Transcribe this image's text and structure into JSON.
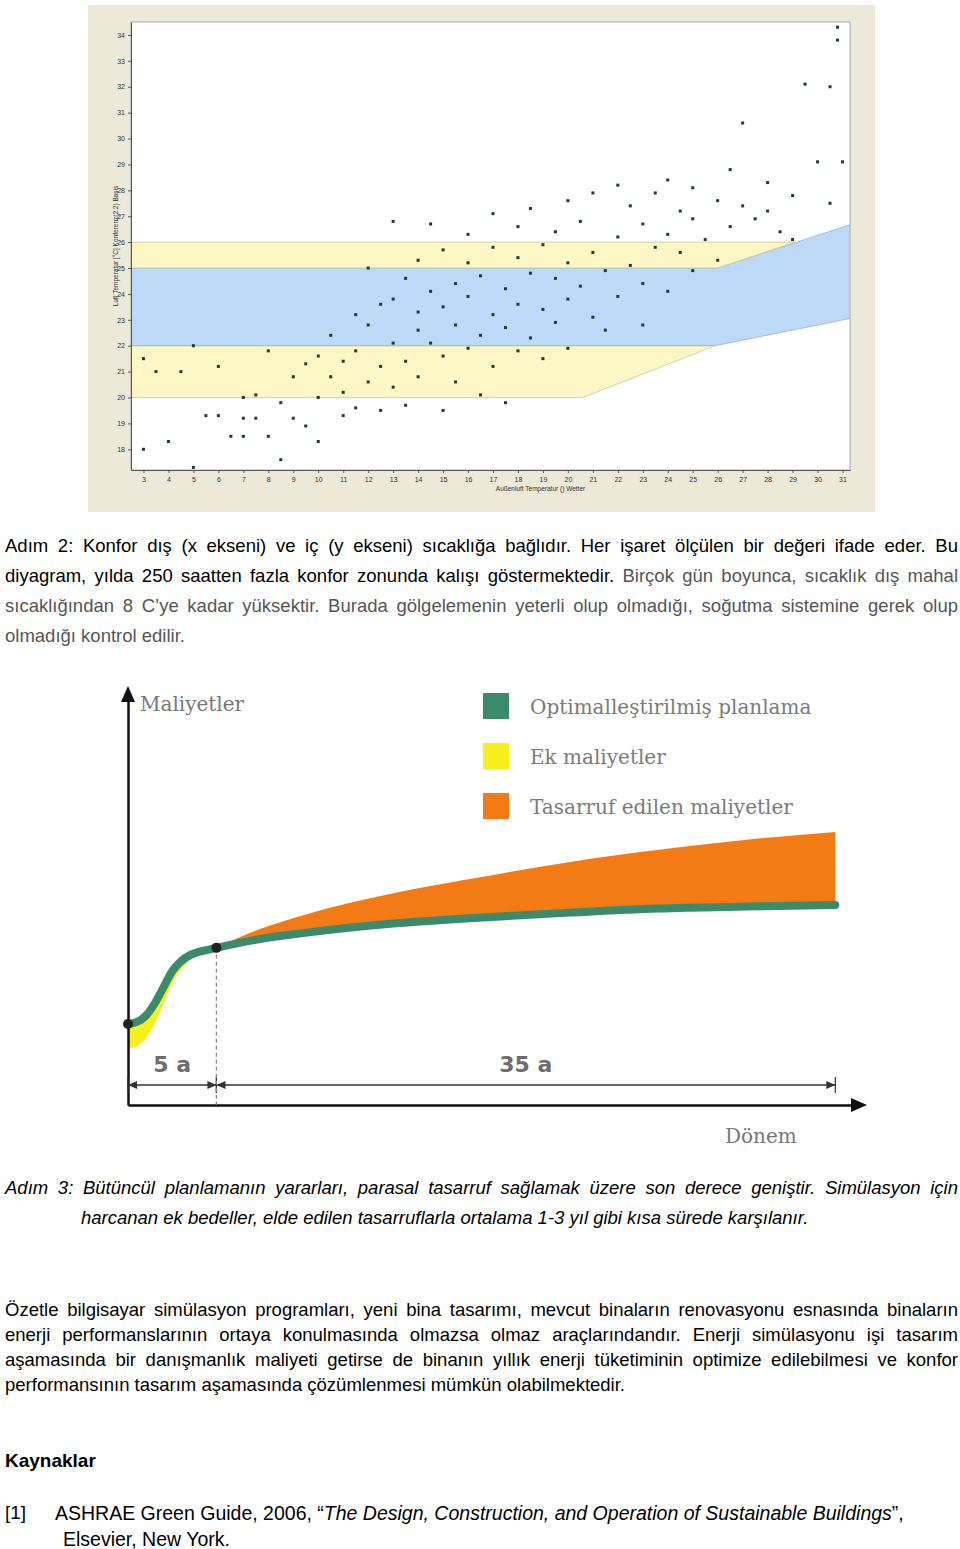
{
  "chart_data": [
    {
      "type": "scatter",
      "x_label": "Außenluft Temperatur () Wetter",
      "y_label": "Luft Temperatur [°C] Konferenz(2.2) Basis",
      "xlim": [
        2.5,
        31.3
      ],
      "ylim": [
        17.2,
        34.5
      ],
      "xticks": [
        3,
        4,
        5,
        6,
        7,
        8,
        9,
        10,
        11,
        12,
        13,
        14,
        15,
        16,
        17,
        18,
        19,
        20,
        21,
        22,
        23,
        24,
        25,
        26,
        27,
        28,
        29,
        30,
        31
      ],
      "yticks": [
        18,
        19,
        20,
        21,
        22,
        23,
        24,
        25,
        26,
        27,
        28,
        29,
        30,
        31,
        32,
        33,
        34
      ],
      "grid": false,
      "series": [
        {
          "type": "area",
          "color": "#fcf7c5",
          "x": [
            2.5,
            20.6,
            25.9
          ],
          "lower": [
            20,
            20,
            22
          ],
          "values": [
            22,
            22,
            22
          ]
        },
        {
          "type": "area",
          "color": "#bcdaf7",
          "x": [
            2.5,
            25.9,
            26,
            31.3
          ],
          "lower": [
            22,
            22,
            22.02,
            23.05
          ],
          "values": [
            25,
            25,
            25,
            26.67
          ]
        },
        {
          "type": "area",
          "color": "#fcf7c5",
          "x": [
            2.5,
            26,
            29.1
          ],
          "lower": [
            25,
            25,
            26
          ],
          "values": [
            26,
            26,
            26
          ]
        },
        {
          "type": "scatter",
          "marker": "square",
          "color": "#1f3d2d",
          "x": [
            3,
            3,
            3.5,
            4,
            4.5,
            5,
            5,
            5.5,
            6,
            6,
            6.5,
            7,
            7,
            7,
            7.5,
            7.5,
            8,
            8,
            8.5,
            8.5,
            9,
            9,
            9.5,
            9.5,
            10,
            10,
            10,
            10.5,
            10.5,
            11,
            11,
            11,
            11.5,
            11.5,
            11.5,
            12,
            12,
            12,
            12.5,
            12.5,
            12.5,
            13,
            13,
            13,
            13,
            13.5,
            13.5,
            13.5,
            14,
            14,
            14,
            14,
            14.5,
            14.5,
            14.5,
            15,
            15,
            15,
            15,
            15.5,
            15.5,
            15.5,
            16,
            16,
            16,
            16,
            16.5,
            16.5,
            16.5,
            17,
            17,
            17,
            17,
            17.5,
            17.5,
            17.5,
            18,
            18,
            18,
            18,
            18.5,
            18.5,
            18.5,
            19,
            19,
            19,
            19.5,
            19.5,
            19.5,
            20,
            20,
            20,
            20,
            20.5,
            20.5,
            21,
            21,
            21,
            21.5,
            21.5,
            22,
            22,
            22,
            22.5,
            22.5,
            23,
            23,
            23,
            23.5,
            23.5,
            24,
            24,
            24,
            24.5,
            24.5,
            25,
            25,
            25,
            25.5,
            26,
            26,
            26.5,
            26.5,
            27,
            27,
            27.5,
            28,
            28,
            28.5,
            29,
            29,
            29.5,
            30,
            30.5,
            30.5,
            30.8,
            30.8,
            31
          ],
          "values": [
            18,
            21.5,
            21,
            18.3,
            21,
            17.3,
            22,
            19.3,
            19.3,
            21.2,
            18.5,
            19.2,
            20,
            18.5,
            19.2,
            20.1,
            18.5,
            21.8,
            19.8,
            17.6,
            19.2,
            20.8,
            21.3,
            18.9,
            20,
            21.6,
            18.3,
            20.8,
            22.4,
            20.2,
            19.3,
            21.4,
            23.2,
            21.8,
            19.6,
            22.8,
            20.6,
            25,
            23.6,
            21.2,
            19.5,
            23.8,
            22.1,
            20.4,
            26.8,
            24.6,
            21.4,
            19.7,
            23.3,
            22.6,
            20.8,
            25.3,
            24.1,
            22.1,
            26.7,
            23.5,
            21.6,
            19.5,
            25.7,
            24.4,
            22.8,
            20.6,
            23.9,
            25.2,
            21.9,
            26.3,
            24.7,
            22.4,
            20.1,
            23.2,
            25.8,
            21.2,
            27.1,
            24.2,
            22.7,
            19.8,
            25.4,
            23.6,
            21.8,
            26.6,
            24.8,
            22.3,
            27.3,
            23.4,
            25.9,
            21.5,
            24.6,
            26.4,
            22.9,
            23.8,
            25.2,
            27.6,
            21.9,
            24.3,
            26.8,
            23.1,
            25.6,
            27.9,
            24.9,
            22.6,
            26.2,
            23.9,
            28.2,
            25.1,
            27.4,
            24.4,
            26.7,
            22.8,
            25.8,
            27.9,
            24.1,
            26.3,
            28.4,
            25.6,
            27.2,
            24.9,
            26.9,
            28.1,
            26.1,
            27.6,
            25.3,
            28.8,
            26.6,
            27.4,
            30.6,
            26.9,
            28.3,
            27.2,
            26.4,
            27.8,
            26.1,
            32.1,
            29.1,
            32,
            27.5,
            33.8,
            34.3,
            29.1
          ]
        }
      ]
    },
    {
      "type": "area",
      "x_label": "Dönem",
      "y_label": "Maliyetler",
      "tick_labels": false,
      "xlim": [
        0,
        41
      ],
      "ylim": [
        0,
        100
      ],
      "x": [
        0,
        0.5,
        1,
        1.5,
        2,
        2.5,
        3,
        3.5,
        4,
        4.5,
        5,
        7.5,
        10,
        15,
        20,
        25,
        30,
        35,
        40
      ],
      "series": [
        {
          "name": "Optimalleştirilmiş planlama",
          "type": "line",
          "color": "#3b8a6b",
          "values": [
            20,
            20.5,
            22,
            25,
            29,
            33,
            35.5,
            37,
            37.8,
            38.3,
            38.8,
            41,
            42.5,
            44.8,
            46.3,
            47.5,
            48.5,
            49,
            49.4
          ]
        },
        {
          "name": "Ek maliyetler",
          "type": "area",
          "color": "#f8f01c",
          "values": [
            6,
            6,
            5.5,
            5,
            4,
            3,
            2,
            1.2,
            0.6,
            0.2,
            0,
            null,
            null,
            null,
            null,
            null,
            null,
            null,
            null
          ]
        },
        {
          "name": "Tasarruf edilen maliyetler",
          "type": "area",
          "color": "#f27b16",
          "values": [
            null,
            null,
            null,
            null,
            null,
            null,
            null,
            null,
            null,
            null,
            0,
            2.5,
            4.5,
            7.5,
            10,
            12.5,
            14.5,
            16.5,
            18
          ]
        }
      ],
      "annotations": [
        {
          "text": "5 a",
          "start": 0,
          "end": 5
        },
        {
          "text": "35 a",
          "start": 5,
          "end": 40
        }
      ]
    }
  ],
  "document": {
    "step2": [
      "Adım 2: Konfor dış (x ekseni) ve iç (y ekseni) sıcaklığa bağlıdır. Her işaret ölçülen bir değeri ifade eder. Bu diyagram, yılda 250 saatten fazla konfor zonunda kalışı göstermektedir.",
      " Birçok gün boyunca, sıcaklık dış mahal sıcaklığından 8 C’ye kadar yüksektir. Burada gölgelemenin yeterli olup olmadığı, soğutma sistemine gerek olup olmadığı kontrol edilir."
    ],
    "step3": "Adım 3: Bütüncül planlamanın yararları, parasal tasarruf sağlamak üzere son derece geniştir. Simülasyon için harcanan ek bedeller, elde edilen tasarruflarla ortalama 1-3 yıl gibi kısa sürede karşılanır.",
    "summary": "Özetle bilgisayar simülasyon programları, yeni bina tasarımı, mevcut binaların renovasyonu esnasında binaların enerji performanslarının ortaya konulmasında olmazsa olmaz araçlarındandır. Enerji simülasyonu işi tasarım aşamasında bir danışmanlık maliyeti getirse de binanın yıllık enerji tüketiminin optimize edilebilmesi ve konfor performansının tasarım aşamasında çözümlenmesi mümkün olabilmektedir.",
    "references_title": "Kaynaklar",
    "references": [
      {
        "number": "[1]",
        "parts": [
          "ASHRAE Green Guide, 2006, “",
          "The Design, Construction, and Operation of Sustainable Buildings",
          "”, Elsevier, New York."
        ]
      }
    ]
  }
}
